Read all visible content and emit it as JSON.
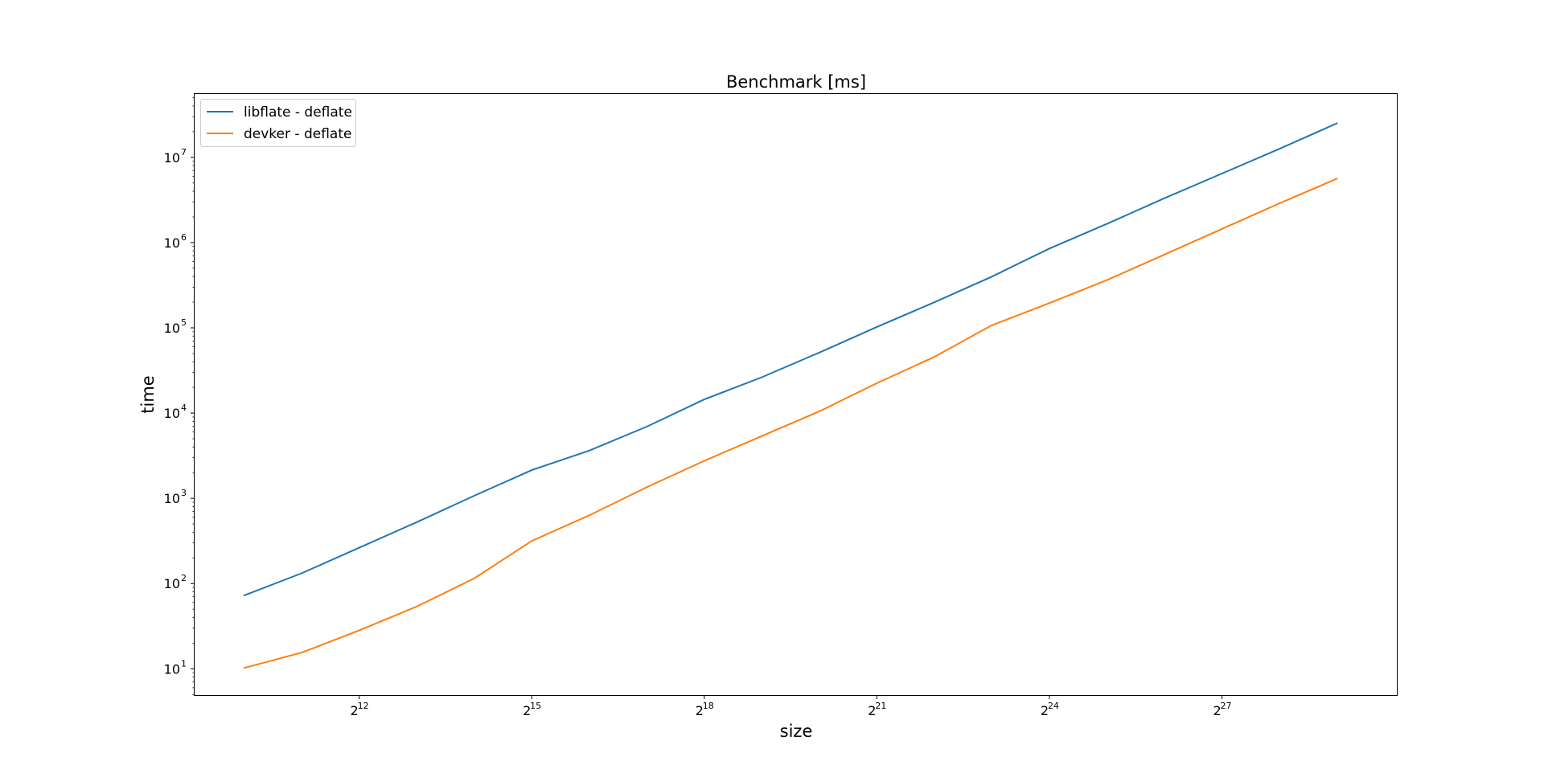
{
  "chart_data": {
    "type": "line",
    "title": "Benchmark [ms]",
    "xlabel": "size",
    "ylabel": "time",
    "x_scale": "log2",
    "y_scale": "log10",
    "xlim_log2": [
      9.14,
      30.04
    ],
    "ylim_log10": [
      0.692,
      7.743
    ],
    "x_ticks": [
      {
        "base": "2",
        "exp": "12",
        "log2": 12
      },
      {
        "base": "2",
        "exp": "15",
        "log2": 15
      },
      {
        "base": "2",
        "exp": "18",
        "log2": 18
      },
      {
        "base": "2",
        "exp": "21",
        "log2": 21
      },
      {
        "base": "2",
        "exp": "24",
        "log2": 24
      },
      {
        "base": "2",
        "exp": "27",
        "log2": 27
      }
    ],
    "y_ticks": [
      {
        "base": "10",
        "exp": "1",
        "log10": 1
      },
      {
        "base": "10",
        "exp": "2",
        "log10": 2
      },
      {
        "base": "10",
        "exp": "3",
        "log10": 3
      },
      {
        "base": "10",
        "exp": "4",
        "log10": 4
      },
      {
        "base": "10",
        "exp": "5",
        "log10": 5
      },
      {
        "base": "10",
        "exp": "6",
        "log10": 6
      },
      {
        "base": "10",
        "exp": "7",
        "log10": 7
      }
    ],
    "x": [
      10,
      11,
      12,
      13,
      14,
      15,
      16,
      17,
      18,
      19,
      20,
      21,
      22,
      23,
      24,
      25,
      26,
      27,
      28,
      29
    ],
    "series": [
      {
        "name": "libflate - deflate",
        "color": "#1f77b4",
        "values_log10": [
          1.86,
          2.12,
          2.42,
          2.72,
          3.03,
          3.33,
          3.56,
          3.84,
          4.16,
          4.42,
          4.71,
          5.01,
          5.3,
          5.6,
          5.93,
          6.22,
          6.52,
          6.81,
          7.1,
          7.4
        ]
      },
      {
        "name": "devker - deflate",
        "color": "#ff7f0e",
        "values_log10": [
          1.01,
          1.19,
          1.45,
          1.73,
          2.06,
          2.5,
          2.8,
          3.13,
          3.44,
          3.73,
          4.02,
          4.35,
          4.66,
          5.03,
          5.29,
          5.56,
          5.86,
          6.16,
          6.46,
          6.75
        ]
      }
    ],
    "legend_position": "upper-left",
    "grid": false
  }
}
